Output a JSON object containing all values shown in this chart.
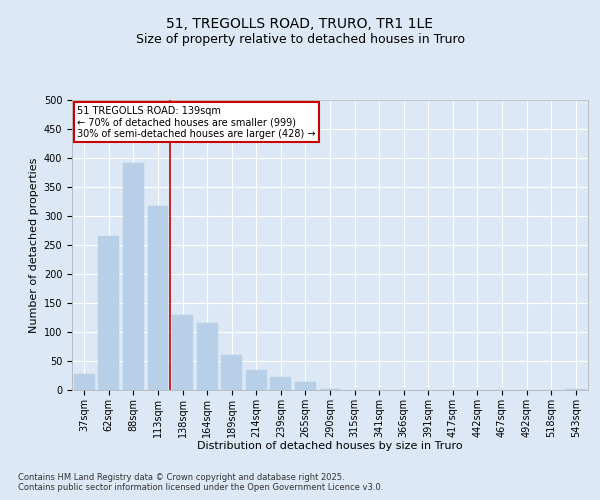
{
  "title1": "51, TREGOLLS ROAD, TRURO, TR1 1LE",
  "title2": "Size of property relative to detached houses in Truro",
  "xlabel": "Distribution of detached houses by size in Truro",
  "ylabel": "Number of detached properties",
  "categories": [
    "37sqm",
    "62sqm",
    "88sqm",
    "113sqm",
    "138sqm",
    "164sqm",
    "189sqm",
    "214sqm",
    "239sqm",
    "265sqm",
    "290sqm",
    "315sqm",
    "341sqm",
    "366sqm",
    "391sqm",
    "417sqm",
    "442sqm",
    "467sqm",
    "492sqm",
    "518sqm",
    "543sqm"
  ],
  "values": [
    27,
    265,
    392,
    318,
    130,
    115,
    60,
    35,
    23,
    13,
    2,
    0,
    0,
    0,
    0,
    0,
    0,
    0,
    0,
    0,
    1
  ],
  "bar_color": "#b8cfe8",
  "bar_edge_color": "#b8cfe8",
  "vline_x_index": 3.5,
  "vline_color": "#cc0000",
  "annotation_text": "51 TREGOLLS ROAD: 139sqm\n← 70% of detached houses are smaller (999)\n30% of semi-detached houses are larger (428) →",
  "annotation_box_color": "#ffffff",
  "annotation_box_edge": "#cc0000",
  "footer": "Contains HM Land Registry data © Crown copyright and database right 2025.\nContains public sector information licensed under the Open Government Licence v3.0.",
  "bg_color": "#dce8f5",
  "plot_bg_color": "#dce8f5",
  "ylim": [
    0,
    500
  ],
  "yticks": [
    0,
    50,
    100,
    150,
    200,
    250,
    300,
    350,
    400,
    450,
    500
  ],
  "grid_color": "#ffffff",
  "title_fontsize": 10,
  "subtitle_fontsize": 9,
  "axis_label_fontsize": 8,
  "tick_fontsize": 7,
  "footer_fontsize": 6
}
